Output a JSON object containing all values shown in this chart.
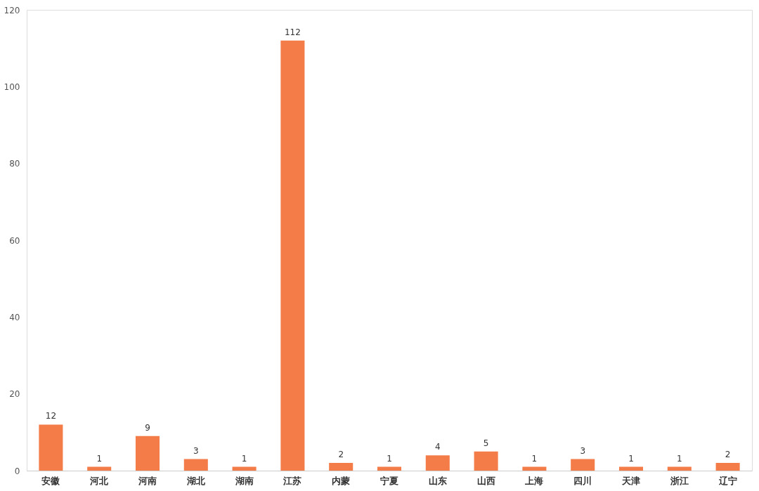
{
  "chart_data": {
    "type": "bar",
    "categories": [
      "安徽",
      "河北",
      "河南",
      "湖北",
      "湖南",
      "江苏",
      "内蒙",
      "宁夏",
      "山东",
      "山西",
      "上海",
      "四川",
      "天津",
      "浙江",
      "辽宁"
    ],
    "values": [
      12,
      1,
      9,
      3,
      1,
      112,
      2,
      1,
      4,
      5,
      1,
      3,
      1,
      1,
      2
    ],
    "color": "#f47c48",
    "ylim": [
      0,
      120
    ],
    "yticks": [
      0,
      20,
      40,
      60,
      80,
      100,
      120
    ],
    "data_labels": true,
    "grid": false
  }
}
